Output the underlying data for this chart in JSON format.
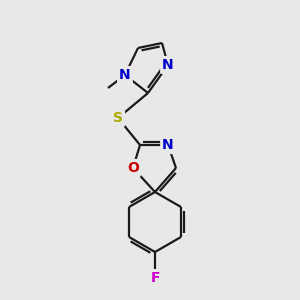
{
  "bg_color": "#e8e8e8",
  "bond_color": "#1a1a1a",
  "atom_colors": {
    "N": "#0000cc",
    "O": "#cc0000",
    "S": "#aaaa00",
    "F": "#cc00cc",
    "C": "#1a1a1a"
  },
  "lw": 1.6,
  "fontsize": 10
}
